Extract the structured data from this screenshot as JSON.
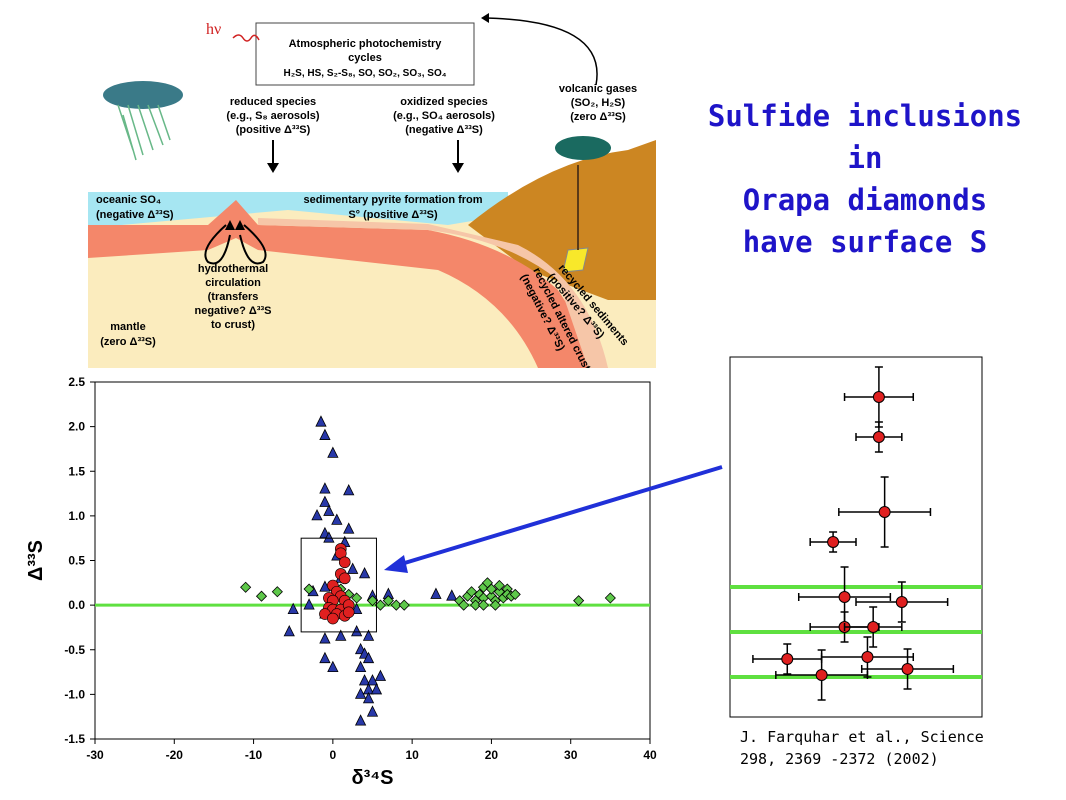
{
  "title": {
    "line1": "Sulfide inclusions in",
    "line2": "Orapa diamonds",
    "line3": "have surface S"
  },
  "citation": {
    "line1": "J. Farquhar et al., Science",
    "line2": "298, 2369 -2372 (2002)"
  },
  "diagram": {
    "hv": "hν",
    "box_line1": "Atmospheric photochemistry",
    "box_line2": "cycles",
    "box_line3": "H₂S, HS, S₂-S₈, SO, SO₂, SO₃, SO₄",
    "reduced_1": "reduced species",
    "reduced_2": "(e.g., S₈ aerosols)",
    "reduced_3": "(positive Δ³³S)",
    "oxidized_1": "oxidized species",
    "oxidized_2": "(e.g., SO₄ aerosols)",
    "oxidized_3": "(negative Δ³³S)",
    "volcanic_1": "volcanic gases",
    "volcanic_2": "(SO₂, H₂S)",
    "volcanic_3": "(zero Δ³³S)",
    "oceanic_1": "oceanic SO₄",
    "oceanic_2": "(negative Δ³³S)",
    "pyrite_1": "sedimentary pyrite formation from",
    "pyrite_2": "S° (positive Δ³³S)",
    "hydro_1": "hydrothermal",
    "hydro_2": "circulation",
    "hydro_3": "(transfers",
    "hydro_4": "negative? Δ³³S",
    "hydro_5": "to crust)",
    "mantle_1": "mantle",
    "mantle_2": "(zero Δ³³S)",
    "crust_1": "recycled altered crust",
    "crust_2": "(negative? Δ³³S)",
    "sed_1": "recycled sediments",
    "sed_2": "(positive? Δ³³S)"
  },
  "chart_data": [
    {
      "type": "scatter",
      "xlabel": "δ³⁴S",
      "ylabel": "Δ³³S",
      "xlim": [
        -30,
        40
      ],
      "ylim": [
        -1.5,
        2.5
      ],
      "xticks": [
        -30,
        -20,
        -10,
        0,
        10,
        20,
        30,
        40
      ],
      "yticks": [
        -1.5,
        -1.0,
        -0.5,
        0.0,
        0.5,
        1.0,
        1.5,
        2.0,
        2.5
      ],
      "xtick_labels": [
        "-30",
        "-20",
        "-10",
        "0",
        "10",
        "20",
        "30",
        "40"
      ],
      "ytick_labels": [
        "-1.5",
        "-1.0",
        "-0.5",
        "0.0",
        "0.5",
        "1.0",
        "1.5",
        "2.0",
        "2.5"
      ],
      "reference_line_y": 0.0,
      "colors": {
        "triangle": "#2838a8",
        "diamond": "#5ec84a",
        "circle": "#e02020",
        "line": "#5fe040",
        "arrow": "#2030d8"
      },
      "series": [
        {
          "marker": "triangle",
          "points": [
            [
              -1.5,
              2.05
            ],
            [
              -1,
              1.9
            ],
            [
              0,
              1.7
            ],
            [
              -1,
              1.3
            ],
            [
              2,
              1.28
            ],
            [
              -1,
              1.15
            ],
            [
              -0.5,
              1.05
            ],
            [
              -2,
              1.0
            ],
            [
              0.5,
              0.95
            ],
            [
              2,
              0.85
            ],
            [
              -1,
              0.8
            ],
            [
              -0.5,
              0.75
            ],
            [
              1.5,
              0.7
            ],
            [
              0.5,
              0.55
            ],
            [
              2.5,
              0.4
            ],
            [
              1,
              0.3
            ],
            [
              -2.5,
              0.15
            ],
            [
              -1,
              0.2
            ],
            [
              4,
              0.35
            ],
            [
              -3,
              0.0
            ],
            [
              -5,
              -0.05
            ],
            [
              -1,
              -0.1
            ],
            [
              0,
              -0.05
            ],
            [
              3,
              -0.05
            ],
            [
              5,
              0.1
            ],
            [
              7,
              0.12
            ],
            [
              13,
              0.12
            ],
            [
              15,
              0.1
            ],
            [
              -5.5,
              -0.3
            ],
            [
              -1,
              -0.38
            ],
            [
              1,
              -0.35
            ],
            [
              3,
              -0.3
            ],
            [
              3.5,
              -0.5
            ],
            [
              4.5,
              -0.35
            ],
            [
              -1,
              -0.6
            ],
            [
              0,
              -0.7
            ],
            [
              3.5,
              -0.7
            ],
            [
              4,
              -0.55
            ],
            [
              4.5,
              -0.6
            ],
            [
              4,
              -0.85
            ],
            [
              5,
              -0.85
            ],
            [
              6,
              -0.8
            ],
            [
              4.5,
              -0.95
            ],
            [
              5.5,
              -0.95
            ],
            [
              3.5,
              -1.0
            ],
            [
              4.5,
              -1.05
            ],
            [
              5,
              -1.2
            ],
            [
              3.5,
              -1.3
            ]
          ]
        },
        {
          "marker": "diamond",
          "points": [
            [
              -11,
              0.2
            ],
            [
              -9,
              0.1
            ],
            [
              -7,
              0.15
            ],
            [
              -3,
              0.18
            ],
            [
              1,
              0.18
            ],
            [
              2,
              0.12
            ],
            [
              3,
              0.08
            ],
            [
              5,
              0.05
            ],
            [
              6,
              0.0
            ],
            [
              7,
              0.05
            ],
            [
              8,
              0.0
            ],
            [
              9,
              0.0
            ],
            [
              16,
              0.05
            ],
            [
              17,
              0.1
            ],
            [
              17.5,
              0.15
            ],
            [
              18,
              0.05
            ],
            [
              18.5,
              0.12
            ],
            [
              19,
              0.2
            ],
            [
              19,
              0.08
            ],
            [
              19.5,
              0.25
            ],
            [
              20,
              0.1
            ],
            [
              20,
              0.18
            ],
            [
              20.5,
              0.05
            ],
            [
              21,
              0.15
            ],
            [
              21,
              0.22
            ],
            [
              21.5,
              0.08
            ],
            [
              22,
              0.18
            ],
            [
              22,
              0.12
            ],
            [
              22.5,
              0.1
            ],
            [
              23,
              0.12
            ],
            [
              16.5,
              0.0
            ],
            [
              18,
              0.0
            ],
            [
              19,
              0.0
            ],
            [
              20.5,
              0.0
            ],
            [
              31,
              0.05
            ],
            [
              35,
              0.08
            ]
          ]
        },
        {
          "marker": "circle",
          "points": [
            [
              1,
              0.63
            ],
            [
              1,
              0.58
            ],
            [
              1.5,
              0.48
            ],
            [
              1,
              0.35
            ],
            [
              1.5,
              0.3
            ],
            [
              0,
              0.22
            ],
            [
              0.5,
              0.15
            ],
            [
              1,
              0.1
            ],
            [
              -0.5,
              0.08
            ],
            [
              0,
              0.05
            ],
            [
              1.5,
              0.05
            ],
            [
              -0.5,
              -0.03
            ],
            [
              0,
              -0.05
            ],
            [
              1,
              -0.05
            ],
            [
              2,
              0.0
            ],
            [
              -1,
              -0.1
            ],
            [
              0.5,
              -0.1
            ],
            [
              1.5,
              -0.12
            ],
            [
              0,
              -0.15
            ],
            [
              2,
              -0.08
            ]
          ]
        }
      ]
    },
    {
      "type": "scatter",
      "title": "",
      "reference_lines_y": [
        0.3,
        -0.15,
        -0.6
      ],
      "points_with_errorbars": [
        {
          "x": 4,
          "y": 2.2,
          "xerr": 3,
          "yerr": 0.3
        },
        {
          "x": 4,
          "y": 1.8,
          "xerr": 2,
          "yerr": 0.15
        },
        {
          "x": 4.5,
          "y": 1.05,
          "xerr": 4,
          "yerr": 0.35
        },
        {
          "x": 0,
          "y": 0.75,
          "xerr": 2,
          "yerr": 0.1
        },
        {
          "x": 1,
          "y": 0.2,
          "xerr": 4,
          "yerr": 0.3
        },
        {
          "x": 6,
          "y": 0.15,
          "xerr": 4,
          "yerr": 0.2
        },
        {
          "x": 1,
          "y": -0.1,
          "xerr": 3,
          "yerr": 0.15
        },
        {
          "x": 3.5,
          "y": -0.1,
          "xerr": 2.5,
          "yerr": 0.2
        },
        {
          "x": 3,
          "y": -0.4,
          "xerr": 4,
          "yerr": 0.2
        },
        {
          "x": -4,
          "y": -0.42,
          "xerr": 3,
          "yerr": 0.15
        },
        {
          "x": -1,
          "y": -0.58,
          "xerr": 4,
          "yerr": 0.25
        },
        {
          "x": 6.5,
          "y": -0.52,
          "xerr": 4,
          "yerr": 0.2
        }
      ],
      "xlim": [
        -9,
        13
      ],
      "ylim": [
        -1.0,
        2.6
      ]
    }
  ]
}
